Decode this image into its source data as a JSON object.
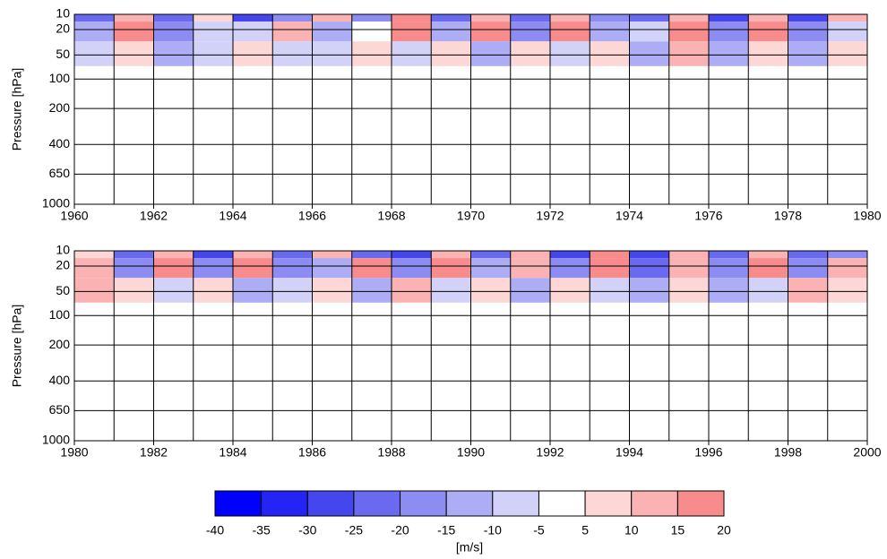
{
  "chart_data": [
    {
      "type": "contour",
      "ylabel": "Pressure [hPa]",
      "xlim": [
        1960,
        1980
      ],
      "xticks": [
        1960,
        1962,
        1964,
        1966,
        1968,
        1970,
        1972,
        1974,
        1976,
        1978,
        1980
      ],
      "xminor": [
        1961,
        1963,
        1965,
        1967,
        1969,
        1971,
        1973,
        1975,
        1977,
        1979
      ],
      "ylim": [
        1000,
        10
      ],
      "yticks": [
        10,
        20,
        50,
        100,
        200,
        400,
        650,
        1000
      ],
      "x": [
        1960,
        1961,
        1962,
        1963,
        1964,
        1965,
        1966,
        1967,
        1968,
        1969,
        1970,
        1971,
        1972,
        1973,
        1974,
        1975,
        1976,
        1977,
        1978,
        1979
      ],
      "levels": [
        10,
        20,
        50
      ],
      "values": [
        [
          -25,
          10,
          -25,
          5,
          -30,
          -20,
          10,
          -20,
          15,
          -25,
          10,
          -25,
          10,
          -20,
          -25,
          10,
          -30,
          10,
          -30,
          10
        ],
        [
          -15,
          15,
          -20,
          -10,
          -10,
          10,
          -15,
          -5,
          15,
          -15,
          15,
          -20,
          15,
          -15,
          -10,
          15,
          -20,
          15,
          -20,
          -10
        ],
        [
          -10,
          5,
          -15,
          -10,
          5,
          -10,
          -10,
          5,
          -10,
          5,
          -15,
          5,
          -10,
          5,
          -15,
          10,
          -15,
          5,
          -15,
          5
        ]
      ]
    },
    {
      "type": "contour",
      "ylabel": "Pressure [hPa]",
      "xlim": [
        1980,
        2000
      ],
      "xticks": [
        1980,
        1982,
        1984,
        1986,
        1988,
        1990,
        1992,
        1994,
        1996,
        1998,
        2000
      ],
      "xminor": [
        1981,
        1983,
        1985,
        1987,
        1989,
        1991,
        1993,
        1995,
        1997,
        1999
      ],
      "ylim": [
        1000,
        10
      ],
      "yticks": [
        10,
        20,
        50,
        100,
        200,
        400,
        650,
        1000
      ],
      "x": [
        1980,
        1981,
        1982,
        1983,
        1984,
        1985,
        1986,
        1987,
        1988,
        1989,
        1990,
        1991,
        1992,
        1993,
        1994,
        1995,
        1996,
        1997,
        1998,
        1999
      ],
      "levels": [
        10,
        20,
        50
      ],
      "values": [
        [
          5,
          -25,
          10,
          -30,
          10,
          -25,
          10,
          -25,
          -30,
          10,
          -25,
          10,
          -30,
          15,
          -30,
          10,
          -25,
          10,
          -25,
          -20
        ],
        [
          10,
          -20,
          15,
          -20,
          15,
          -20,
          -15,
          15,
          -20,
          15,
          -15,
          10,
          -20,
          15,
          -25,
          10,
          -20,
          15,
          -20,
          10
        ],
        [
          10,
          5,
          -10,
          5,
          -15,
          -10,
          5,
          -15,
          10,
          -10,
          5,
          -15,
          5,
          -10,
          -15,
          5,
          -15,
          -10,
          10,
          5
        ]
      ]
    },
    {
      "type": "colorbar",
      "label": "[m/s]",
      "ticks": [
        -40,
        -35,
        -30,
        -25,
        -20,
        -15,
        -10,
        -5,
        5,
        10,
        15,
        20
      ],
      "bounds": [
        -40,
        -35,
        -30,
        -25,
        -20,
        -15,
        -10,
        -5,
        5,
        10,
        15,
        20
      ],
      "colors": [
        "#0000ff",
        "#2424f4",
        "#4646ee",
        "#6a6af0",
        "#8c8cf2",
        "#adadf5",
        "#d2d2f9",
        "#ffffff",
        "#fdd6d6",
        "#fbb2b2",
        "#f88c8c"
      ]
    }
  ]
}
